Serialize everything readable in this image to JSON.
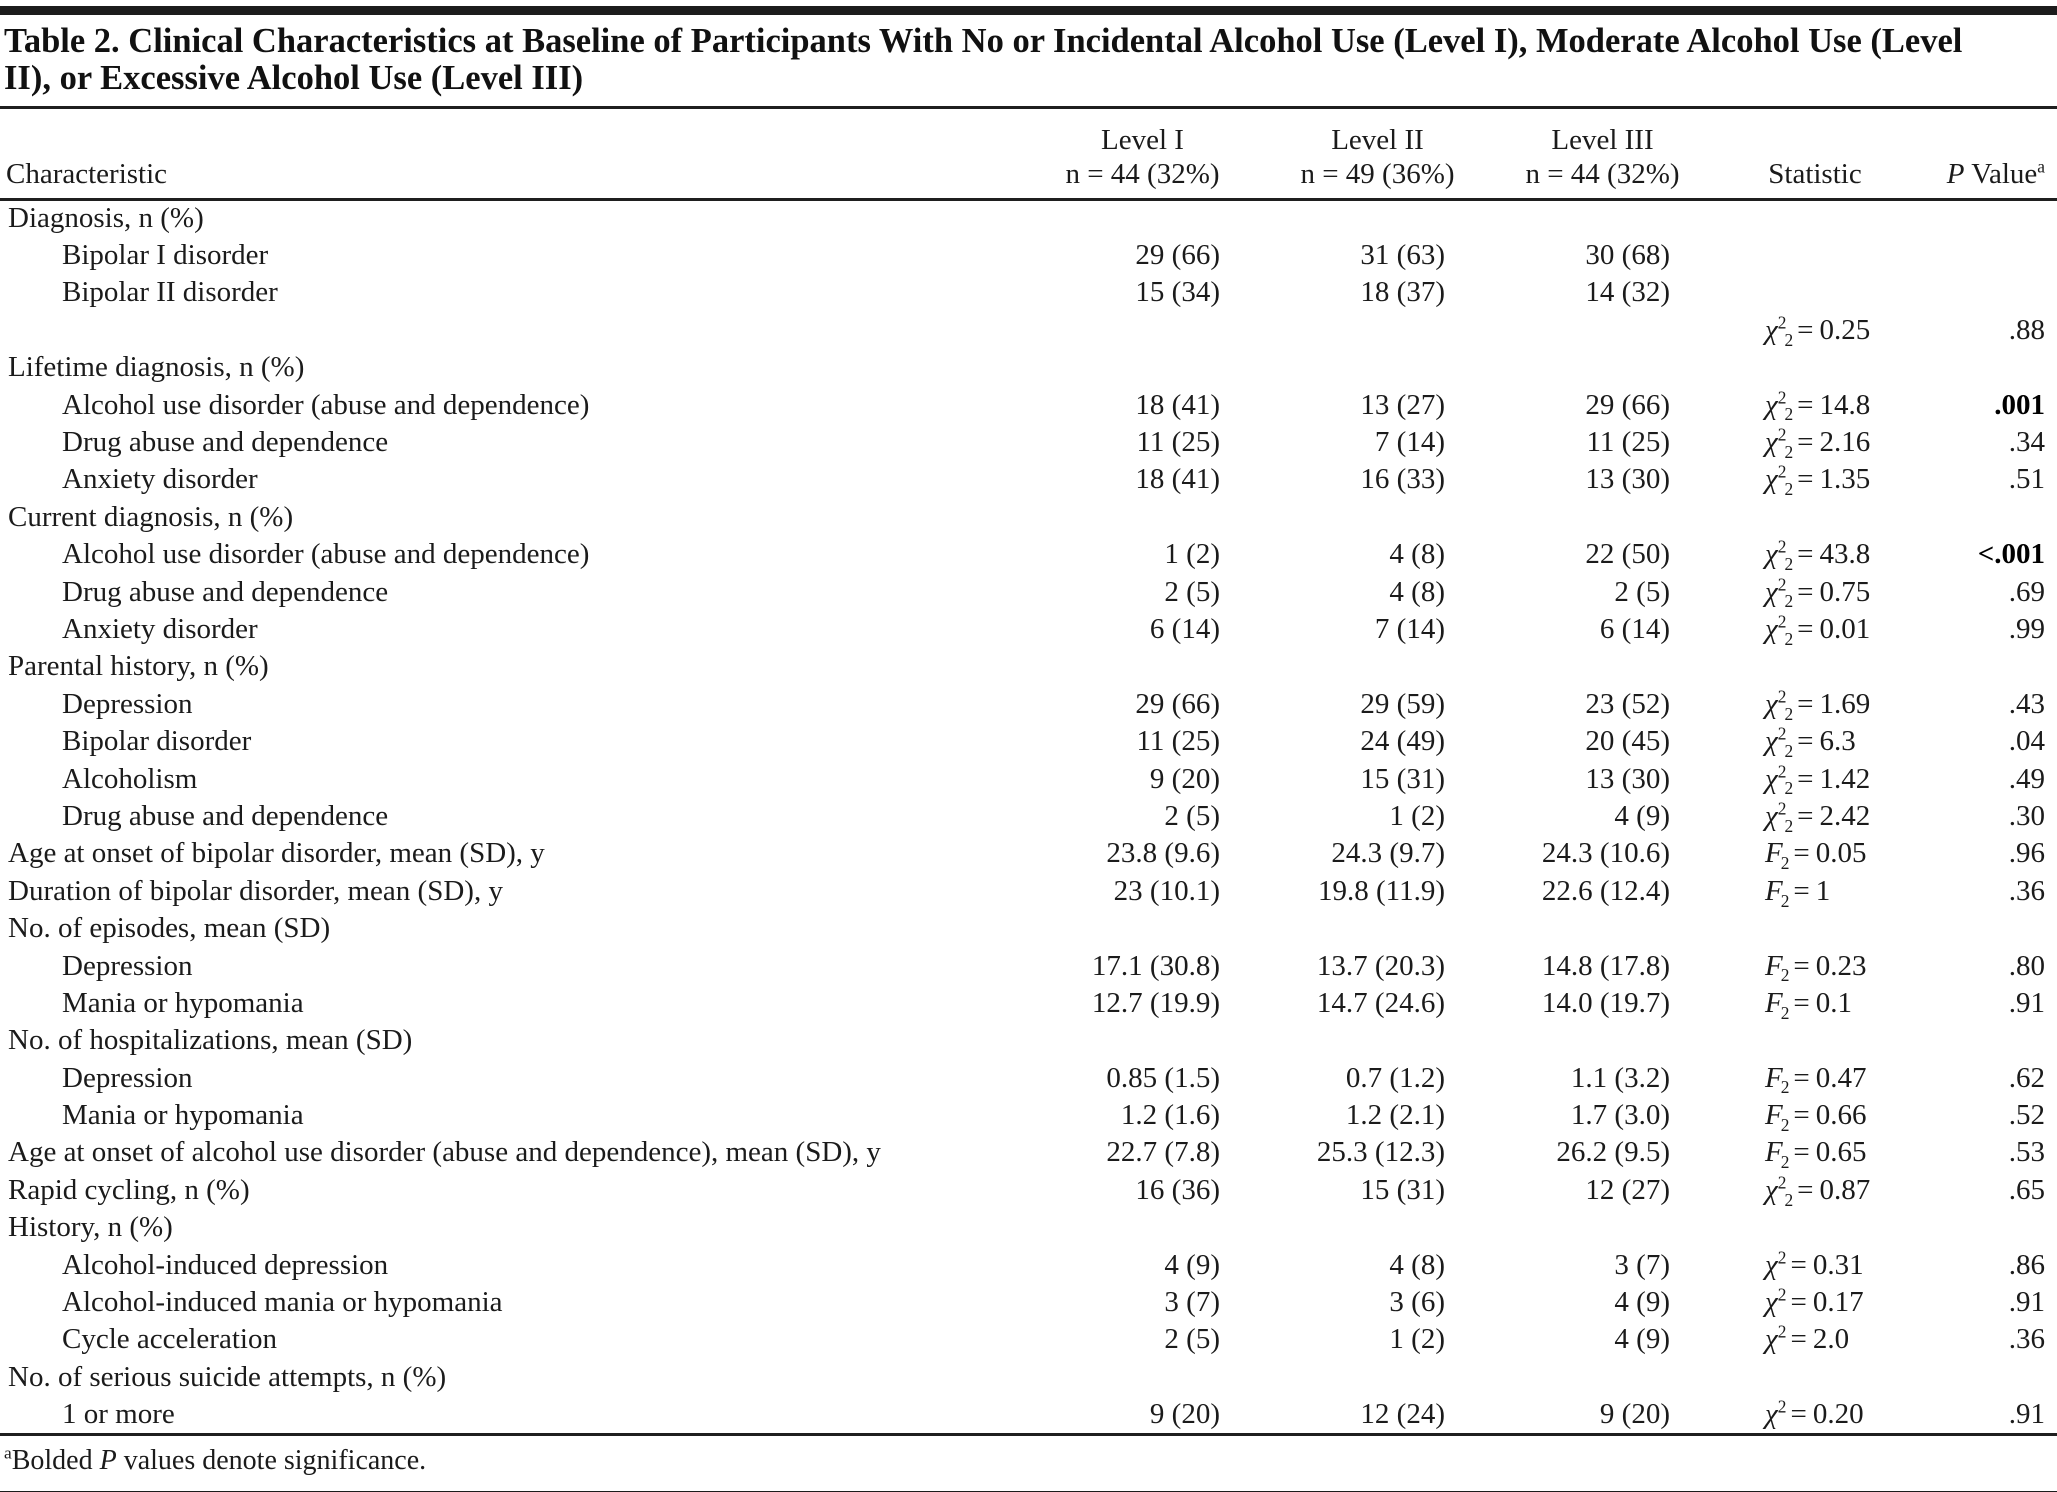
{
  "title": "Table 2. Clinical Characteristics at Baseline of Participants With No or Incidental Alcohol Use (Level I), Moderate Alcohol Use (Level II), or Excessive Alcohol Use (Level III)",
  "columns": {
    "characteristic": "Characteristic",
    "levels": [
      {
        "line1": "Level I",
        "line2": "n = 44 (32%)"
      },
      {
        "line1": "Level II",
        "line2": "n = 49 (36%)"
      },
      {
        "line1": "Level III",
        "line2": "n = 44 (32%)"
      }
    ],
    "statistic": "Statistic",
    "p_value": {
      "italic": "P",
      "text": " Value",
      "sup": "a"
    }
  },
  "rows": [
    {
      "label": "Diagnosis, n (%)",
      "indent": 0,
      "values": [
        "",
        "",
        ""
      ],
      "stat": null,
      "p": "",
      "p_bold": false
    },
    {
      "label": "Bipolar I disorder",
      "indent": 1,
      "values": [
        "29 (66)",
        "31 (63)",
        "30 (68)"
      ],
      "stat": null,
      "p": "",
      "p_bold": false
    },
    {
      "label": "Bipolar II disorder",
      "indent": 1,
      "values": [
        "15 (34)",
        "18 (37)",
        "14 (32)"
      ],
      "stat": null,
      "p": "",
      "p_bold": false
    },
    {
      "label": "",
      "indent": 0,
      "values": [
        "",
        "",
        ""
      ],
      "stat": {
        "sym": "χ",
        "sup": "2",
        "sub": "2",
        "value": "0.25"
      },
      "p": ".88",
      "p_bold": false
    },
    {
      "label": "Lifetime diagnosis, n (%)",
      "indent": 0,
      "values": [
        "",
        "",
        ""
      ],
      "stat": null,
      "p": "",
      "p_bold": false
    },
    {
      "label": "Alcohol use disorder (abuse and dependence)",
      "indent": 1,
      "values": [
        "18 (41)",
        "13 (27)",
        "29 (66)"
      ],
      "stat": {
        "sym": "χ",
        "sup": "2",
        "sub": "2",
        "value": "14.8"
      },
      "p": ".001",
      "p_bold": true
    },
    {
      "label": "Drug abuse and dependence",
      "indent": 1,
      "values": [
        "11 (25)",
        "7 (14)",
        "11 (25)"
      ],
      "stat": {
        "sym": "χ",
        "sup": "2",
        "sub": "2",
        "value": "2.16"
      },
      "p": ".34",
      "p_bold": false
    },
    {
      "label": "Anxiety disorder",
      "indent": 1,
      "values": [
        "18 (41)",
        "16 (33)",
        "13 (30)"
      ],
      "stat": {
        "sym": "χ",
        "sup": "2",
        "sub": "2",
        "value": "1.35"
      },
      "p": ".51",
      "p_bold": false
    },
    {
      "label": "Current diagnosis, n (%)",
      "indent": 0,
      "values": [
        "",
        "",
        ""
      ],
      "stat": null,
      "p": "",
      "p_bold": false
    },
    {
      "label": "Alcohol use disorder (abuse and dependence)",
      "indent": 1,
      "values": [
        "1 (2)",
        "4 (8)",
        "22 (50)"
      ],
      "stat": {
        "sym": "χ",
        "sup": "2",
        "sub": "2",
        "value": "43.8"
      },
      "p": "<.001",
      "p_bold": true
    },
    {
      "label": "Drug abuse and dependence",
      "indent": 1,
      "values": [
        "2 (5)",
        "4 (8)",
        "2 (5)"
      ],
      "stat": {
        "sym": "χ",
        "sup": "2",
        "sub": "2",
        "value": "0.75"
      },
      "p": ".69",
      "p_bold": false
    },
    {
      "label": "Anxiety disorder",
      "indent": 1,
      "values": [
        "6 (14)",
        "7 (14)",
        "6 (14)"
      ],
      "stat": {
        "sym": "χ",
        "sup": "2",
        "sub": "2",
        "value": "0.01"
      },
      "p": ".99",
      "p_bold": false
    },
    {
      "label": "Parental history, n (%)",
      "indent": 0,
      "values": [
        "",
        "",
        ""
      ],
      "stat": null,
      "p": "",
      "p_bold": false
    },
    {
      "label": "Depression",
      "indent": 1,
      "values": [
        "29 (66)",
        "29 (59)",
        "23 (52)"
      ],
      "stat": {
        "sym": "χ",
        "sup": "2",
        "sub": "2",
        "value": "1.69"
      },
      "p": ".43",
      "p_bold": false
    },
    {
      "label": "Bipolar disorder",
      "indent": 1,
      "values": [
        "11 (25)",
        "24 (49)",
        "20 (45)"
      ],
      "stat": {
        "sym": "χ",
        "sup": "2",
        "sub": "2",
        "value": "6.3"
      },
      "p": ".04",
      "p_bold": false
    },
    {
      "label": "Alcoholism",
      "indent": 1,
      "values": [
        "9 (20)",
        "15 (31)",
        "13 (30)"
      ],
      "stat": {
        "sym": "χ",
        "sup": "2",
        "sub": "2",
        "value": "1.42"
      },
      "p": ".49",
      "p_bold": false
    },
    {
      "label": "Drug abuse and dependence",
      "indent": 1,
      "values": [
        "2 (5)",
        "1 (2)",
        "4 (9)"
      ],
      "stat": {
        "sym": "χ",
        "sup": "2",
        "sub": "2",
        "value": "2.42"
      },
      "p": ".30",
      "p_bold": false
    },
    {
      "label": "Age at onset of bipolar disorder, mean (SD), y",
      "indent": 0,
      "values": [
        "23.8 (9.6)",
        "24.3 (9.7)",
        "24.3 (10.6)"
      ],
      "stat": {
        "sym": "F",
        "sub": "2",
        "value": "0.05"
      },
      "p": ".96",
      "p_bold": false
    },
    {
      "label": "Duration of bipolar disorder, mean (SD), y",
      "indent": 0,
      "values": [
        "23 (10.1)",
        "19.8 (11.9)",
        "22.6 (12.4)"
      ],
      "stat": {
        "sym": "F",
        "sub": "2",
        "value": "1"
      },
      "p": ".36",
      "p_bold": false
    },
    {
      "label": "No. of episodes, mean (SD)",
      "indent": 0,
      "values": [
        "",
        "",
        ""
      ],
      "stat": null,
      "p": "",
      "p_bold": false
    },
    {
      "label": "Depression",
      "indent": 1,
      "values": [
        "17.1 (30.8)",
        "13.7 (20.3)",
        "14.8 (17.8)"
      ],
      "stat": {
        "sym": "F",
        "sub": "2",
        "value": "0.23"
      },
      "p": ".80",
      "p_bold": false
    },
    {
      "label": "Mania or hypomania",
      "indent": 1,
      "values": [
        "12.7 (19.9)",
        "14.7 (24.6)",
        "14.0 (19.7)"
      ],
      "stat": {
        "sym": "F",
        "sub": "2",
        "value": "0.1"
      },
      "p": ".91",
      "p_bold": false
    },
    {
      "label": "No. of hospitalizations, mean (SD)",
      "indent": 0,
      "values": [
        "",
        "",
        ""
      ],
      "stat": null,
      "p": "",
      "p_bold": false
    },
    {
      "label": "Depression",
      "indent": 1,
      "values": [
        "0.85 (1.5)",
        "0.7 (1.2)",
        "1.1 (3.2)"
      ],
      "stat": {
        "sym": "F",
        "sub": "2",
        "value": "0.47"
      },
      "p": ".62",
      "p_bold": false
    },
    {
      "label": "Mania or hypomania",
      "indent": 1,
      "values": [
        "1.2 (1.6)",
        "1.2 (2.1)",
        "1.7 (3.0)"
      ],
      "stat": {
        "sym": "F",
        "sub": "2",
        "value": "0.66"
      },
      "p": ".52",
      "p_bold": false
    },
    {
      "label": "Age at onset of alcohol use disorder (abuse and dependence), mean (SD), y",
      "indent": 0,
      "values": [
        "22.7 (7.8)",
        "25.3 (12.3)",
        "26.2 (9.5)"
      ],
      "stat": {
        "sym": "F",
        "sub": "2",
        "value": "0.65"
      },
      "p": ".53",
      "p_bold": false
    },
    {
      "label": "Rapid cycling, n (%)",
      "indent": 0,
      "values": [
        "16 (36)",
        "15 (31)",
        "12 (27)"
      ],
      "stat": {
        "sym": "χ",
        "sup": "2",
        "sub": "2",
        "value": "0.87"
      },
      "p": ".65",
      "p_bold": false
    },
    {
      "label": "History, n (%)",
      "indent": 0,
      "values": [
        "",
        "",
        ""
      ],
      "stat": null,
      "p": "",
      "p_bold": false
    },
    {
      "label": "Alcohol-induced depression",
      "indent": 1,
      "values": [
        "4 (9)",
        "4 (8)",
        "3 (7)"
      ],
      "stat": {
        "sym": "χ",
        "sup": "2",
        "value": "0.31"
      },
      "p": ".86",
      "p_bold": false
    },
    {
      "label": "Alcohol-induced mania or hypomania",
      "indent": 1,
      "values": [
        "3 (7)",
        "3 (6)",
        "4 (9)"
      ],
      "stat": {
        "sym": "χ",
        "sup": "2",
        "value": "0.17"
      },
      "p": ".91",
      "p_bold": false
    },
    {
      "label": "Cycle acceleration",
      "indent": 1,
      "values": [
        "2 (5)",
        "1 (2)",
        "4 (9)"
      ],
      "stat": {
        "sym": "χ",
        "sup": "2",
        "value": "2.0"
      },
      "p": ".36",
      "p_bold": false
    },
    {
      "label": "No. of serious suicide attempts, n (%)",
      "indent": 0,
      "values": [
        "",
        "",
        ""
      ],
      "stat": null,
      "p": "",
      "p_bold": false
    },
    {
      "label": "1 or more",
      "indent": 1,
      "values": [
        "9 (20)",
        "12 (24)",
        "9 (20)"
      ],
      "stat": {
        "sym": "χ",
        "sup": "2",
        "value": "0.20"
      },
      "p": ".91",
      "p_bold": false
    }
  ],
  "footnote": {
    "sup": "a",
    "pre": "Bolded ",
    "italic": "P",
    "post": " values denote significance."
  }
}
